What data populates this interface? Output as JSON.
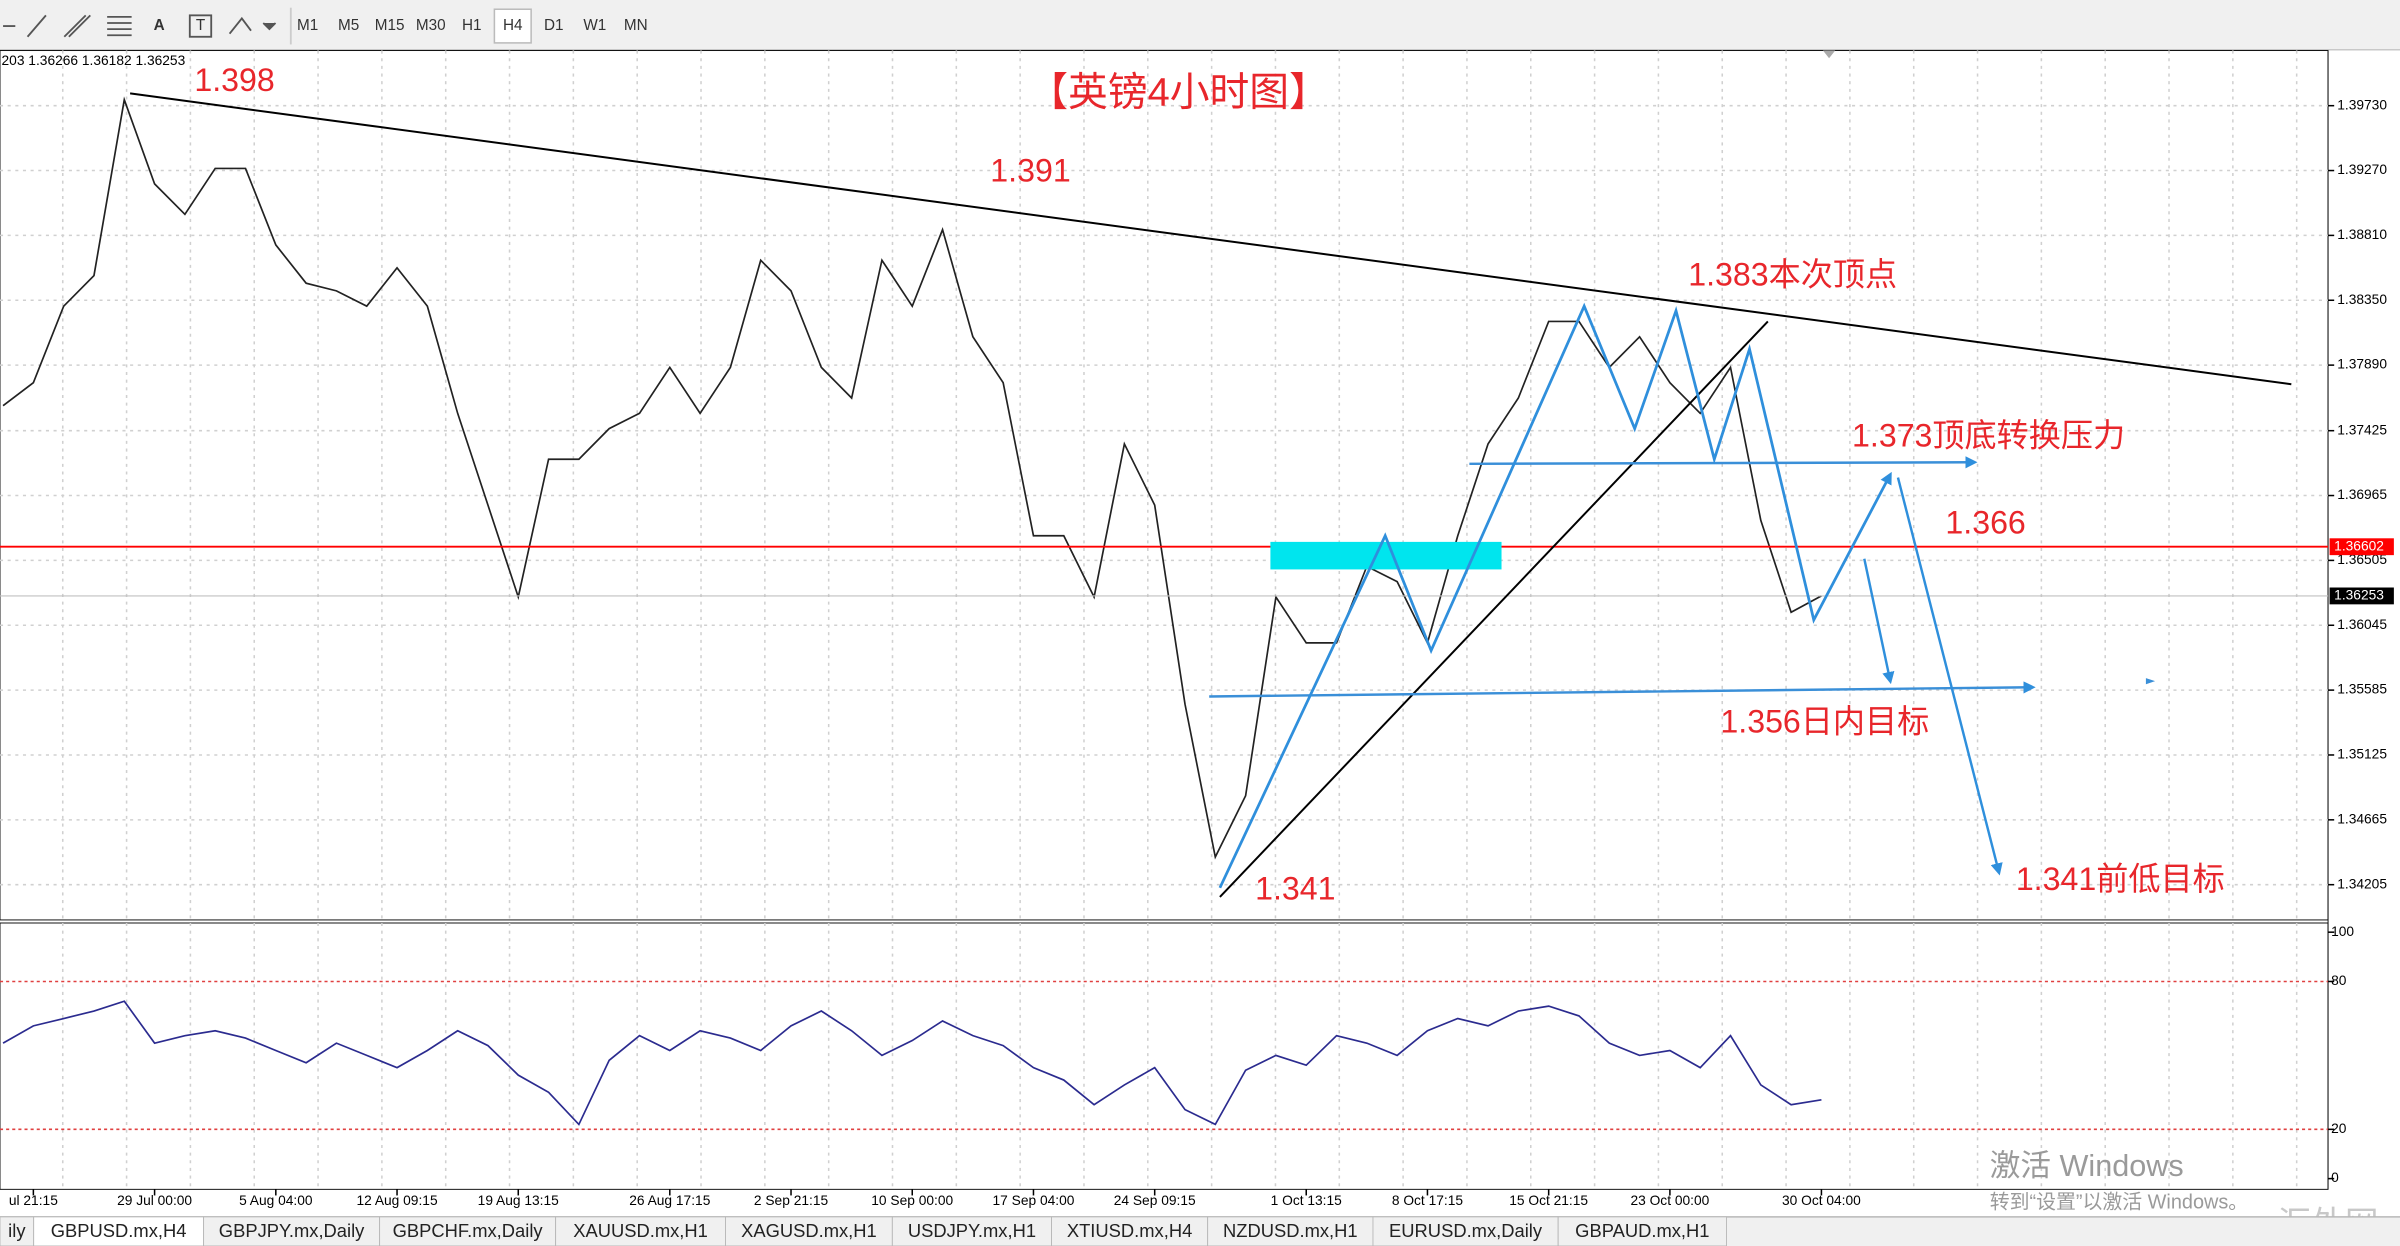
{
  "toolbar": {
    "text_tool": "A",
    "timeframes": [
      "M1",
      "M5",
      "M15",
      "M30",
      "H1",
      "H4",
      "D1",
      "W1",
      "MN"
    ]
  },
  "chart_data": [
    {
      "type": "line",
      "header": "203 1.36266 1.36182 1.36253",
      "color": "#222222",
      "values": [
        1.37603,
        1.37765,
        1.38308,
        1.38525,
        1.39773,
        1.39176,
        1.38959,
        1.39285,
        1.39285,
        1.38742,
        1.38471,
        1.38417,
        1.38308,
        1.38579,
        1.38308,
        1.37548,
        1.36897,
        1.36246,
        1.37223,
        1.37223,
        1.3744,
        1.37548,
        1.37874,
        1.37548,
        1.37874,
        1.38634,
        1.38417,
        1.37874,
        1.37657,
        1.38634,
        1.38308,
        1.38851,
        1.38091,
        1.37765,
        1.3668,
        1.3668,
        1.36246,
        1.37331,
        1.36897,
        1.35486,
        1.34401,
        1.34835,
        1.36246,
        1.3592,
        1.3592,
        1.36463,
        1.36354,
        1.3592,
        1.3668,
        1.37331,
        1.37657,
        1.382,
        1.382,
        1.37874,
        1.38091,
        1.37765,
        1.37548,
        1.37874,
        1.36788,
        1.36137,
        1.36253
      ],
      "categories": [
        null,
        "ul 21:15",
        null,
        null,
        null,
        "29 Jul 00:00",
        null,
        null,
        null,
        "5 Aug 04:00",
        null,
        null,
        null,
        "12 Aug 09:15",
        null,
        null,
        null,
        "19 Aug 13:15",
        null,
        null,
        null,
        null,
        "26 Aug 17:15",
        null,
        null,
        null,
        "2 Sep 21:15",
        null,
        null,
        null,
        "10 Sep 00:00",
        null,
        null,
        null,
        "17 Sep 04:00",
        null,
        null,
        null,
        "24 Sep 09:15",
        null,
        null,
        null,
        null,
        "1 Oct 13:15",
        null,
        null,
        null,
        "8 Oct 17:15",
        null,
        null,
        null,
        "15 Oct 21:15",
        null,
        null,
        null,
        "23 Oct 00:00",
        null,
        null,
        null,
        null,
        "30 Oct 04:00"
      ],
      "ylim": [
        1.33955,
        1.40121
      ],
      "yticks": [
        {
          "value": 1.3973,
          "label": "1.39730"
        },
        {
          "value": 1.3927,
          "label": "1.39270"
        },
        {
          "value": 1.3881,
          "label": "1.38810"
        },
        {
          "value": 1.3835,
          "label": "1.38350"
        },
        {
          "value": 1.3789,
          "label": "1.37890"
        },
        1.37425,
        1.36965,
        1.36505,
        1.36045,
        1.35585,
        1.35125,
        1.34665,
        1.34205
      ],
      "grid": true,
      "hline": 1.36602,
      "hline_color": "#ff0000",
      "last_price": 1.36253,
      "annotations": [
        "【英镑4小时图】",
        "1.398",
        "1.391",
        "1.383本次顶点",
        "1.373顶底转换压力",
        "1.366",
        "1.356日内目标",
        "1.341",
        "1.341前低目标"
      ]
    },
    {
      "type": "line",
      "color": "#2b2b8f",
      "values": [
        55,
        62,
        65,
        68,
        72,
        55,
        58,
        60,
        57,
        52,
        47,
        55,
        50,
        45,
        52,
        60,
        54,
        42,
        35,
        22,
        48,
        58,
        52,
        60,
        57,
        52,
        62,
        68,
        60,
        50,
        56,
        64,
        58,
        54,
        45,
        40,
        30,
        38,
        45,
        28,
        22,
        44,
        50,
        46,
        58,
        55,
        50,
        60,
        65,
        62,
        68,
        70,
        66,
        55,
        50,
        52,
        45,
        58,
        38,
        30,
        32
      ],
      "ylim": [
        0,
        100
      ],
      "yticks": [
        0,
        20,
        80,
        100
      ],
      "levels": [
        20,
        80
      ]
    }
  ],
  "tabs": [
    "ily",
    "GBPUSD.mx,H4",
    "GBPJPY.mx,Daily",
    "GBPCHF.mx,Daily",
    "XAUUSD.mx,H1",
    "XAGUSD.mx,H1",
    "USDJPY.mx,H1",
    "XTIUSD.mx,H4",
    "NZDUSD.mx,H1",
    "EURUSD.mx,Daily",
    "GBPAUD.mx,H1"
  ],
  "active_tab": 1,
  "watermark": {
    "title": "激活 Windows",
    "subtitle": "转到“设置”以激活 Windows。",
    "site": "汇外网"
  }
}
